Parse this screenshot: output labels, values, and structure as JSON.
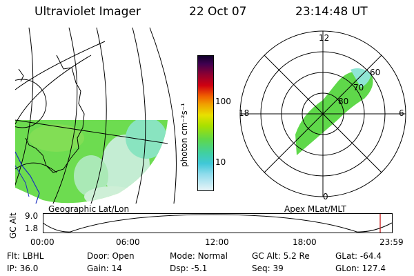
{
  "header": {
    "instrument": "Ultraviolet Imager",
    "date": "22 Oct 07",
    "time": "23:14:48 UT"
  },
  "colorbar": {
    "unit_label": "photon cm⁻²s⁻¹",
    "ticks": [
      "100",
      "10"
    ]
  },
  "left_map": {
    "label": "Geographic Lat/Lon"
  },
  "polar_plot": {
    "label": "Apex MLat/MLT",
    "mlt_labels": {
      "top": "12",
      "left": "18",
      "right": "6",
      "bottom": "0"
    },
    "lat_labels": [
      "60",
      "70",
      "80"
    ]
  },
  "altitude_strip": {
    "ylabel": "GC Alt",
    "yticks": [
      "9.0",
      "1.8"
    ],
    "xticks": [
      "00:00",
      "06:00",
      "12:00",
      "18:00",
      "23:59"
    ]
  },
  "info": {
    "row1": [
      {
        "label": "Flt:",
        "value": "LBHL"
      },
      {
        "label": "Door:",
        "value": "Open"
      },
      {
        "label": "Mode:",
        "value": "Normal"
      },
      {
        "label": "GC Alt:",
        "value": "5.2 Re"
      },
      {
        "label": "GLat:",
        "value": "-64.4"
      }
    ],
    "row2": [
      {
        "label": "IP:",
        "value": "36.0"
      },
      {
        "label": "Gain:",
        "value": "14"
      },
      {
        "label": "Dsp:",
        "value": "-5.1"
      },
      {
        "label": "Seq:",
        "value": "39"
      },
      {
        "label": "GLon:",
        "value": "127.4"
      }
    ]
  },
  "colors": {
    "aurora_green": "#5fd84a",
    "aurora_light": "#7fe8c8",
    "marker_red": "#c00000"
  }
}
